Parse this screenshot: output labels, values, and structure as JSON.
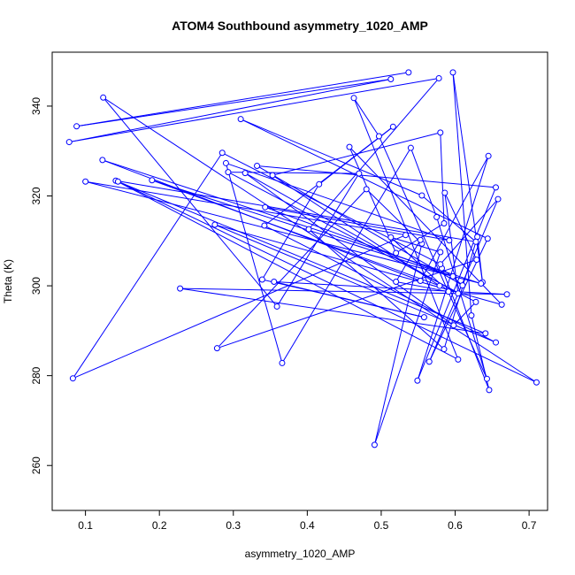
{
  "chart_data": {
    "type": "line",
    "title": "ATOM4 Southbound asymmetry_1020_AMP",
    "xlabel": "asymmetry_1020_AMP",
    "ylabel": "Theta (K)",
    "xlim": [
      0.055,
      0.725
    ],
    "ylim": [
      250,
      352
    ],
    "xticks": [
      "0.1",
      "0.2",
      "0.3",
      "0.4",
      "0.5",
      "0.6",
      "0.7"
    ],
    "yticks": [
      "260",
      "280",
      "300",
      "320",
      "340"
    ],
    "grid": false,
    "series_color": "#0000ff",
    "series": [
      {
        "points": [
          [
            0.537,
            347.5
          ],
          [
            0.088,
            335.5
          ],
          [
            0.513,
            346.0
          ],
          [
            0.078,
            332.0
          ],
          [
            0.578,
            346.2
          ],
          [
            0.402,
            312.6
          ],
          [
            0.585,
            285.9
          ],
          [
            0.63,
            310.9
          ],
          [
            0.637,
            300.8
          ],
          [
            0.597,
            347.5
          ],
          [
            0.622,
            293.4
          ],
          [
            0.646,
            276.8
          ],
          [
            0.582,
            303.9
          ],
          [
            0.61,
            300.1
          ],
          [
            0.332,
            326.7
          ],
          [
            0.655,
            321.9
          ],
          [
            0.549,
            278.9
          ],
          [
            0.645,
            328.9
          ],
          [
            0.553,
            301.1
          ],
          [
            0.123,
            328.0
          ],
          [
            0.635,
            300.5
          ],
          [
            0.1,
            323.2
          ],
          [
            0.533,
            311.3
          ],
          [
            0.083,
            279.4
          ],
          [
            0.285,
            329.6
          ],
          [
            0.58,
            304.8
          ],
          [
            0.658,
            319.3
          ],
          [
            0.565,
            283.1
          ],
          [
            0.644,
            310.5
          ],
          [
            0.31,
            337.1
          ],
          [
            0.555,
            320.1
          ],
          [
            0.628,
            309.8
          ],
          [
            0.141,
            323.4
          ],
          [
            0.604,
            283.6
          ],
          [
            0.463,
            341.8
          ],
          [
            0.497,
            333.3
          ],
          [
            0.643,
            279.3
          ],
          [
            0.575,
            315.3
          ],
          [
            0.54,
            330.7
          ],
          [
            0.366,
            282.8
          ],
          [
            0.29,
            327.3
          ],
          [
            0.592,
            310.1
          ],
          [
            0.343,
            317.5
          ],
          [
            0.597,
            302.1
          ],
          [
            0.19,
            323.5
          ],
          [
            0.579,
            300.0
          ],
          [
            0.353,
            324.6
          ],
          [
            0.58,
            334.1
          ],
          [
            0.585,
            313.9
          ],
          [
            0.52,
            307.3
          ],
          [
            0.457,
            330.9
          ],
          [
            0.663,
            295.8
          ],
          [
            0.275,
            313.6
          ],
          [
            0.655,
            287.4
          ],
          [
            0.342,
            313.4
          ],
          [
            0.516,
            335.4
          ],
          [
            0.416,
            322.6
          ],
          [
            0.339,
            301.4
          ],
          [
            0.558,
            293.0
          ],
          [
            0.355,
            300.9
          ],
          [
            0.67,
            298.1
          ],
          [
            0.228,
            299.4
          ],
          [
            0.641,
            289.4
          ],
          [
            0.144,
            323.2
          ],
          [
            0.71,
            278.5
          ],
          [
            0.124,
            341.9
          ],
          [
            0.359,
            295.4
          ],
          [
            0.47,
            325.0
          ],
          [
            0.293,
            325.3
          ],
          [
            0.628,
            296.4
          ],
          [
            0.598,
            291.2
          ],
          [
            0.316,
            325.1
          ],
          [
            0.604,
            298.3
          ],
          [
            0.586,
            320.7
          ],
          [
            0.629,
            305.8
          ],
          [
            0.278,
            286.1
          ],
          [
            0.48,
            321.5
          ],
          [
            0.555,
            309.4
          ],
          [
            0.491,
            264.6
          ],
          [
            0.58,
            307.5
          ],
          [
            0.513,
            310.8
          ],
          [
            0.591,
            298.7
          ],
          [
            0.52,
            300.9
          ],
          [
            0.553,
            310.2
          ]
        ]
      }
    ]
  }
}
